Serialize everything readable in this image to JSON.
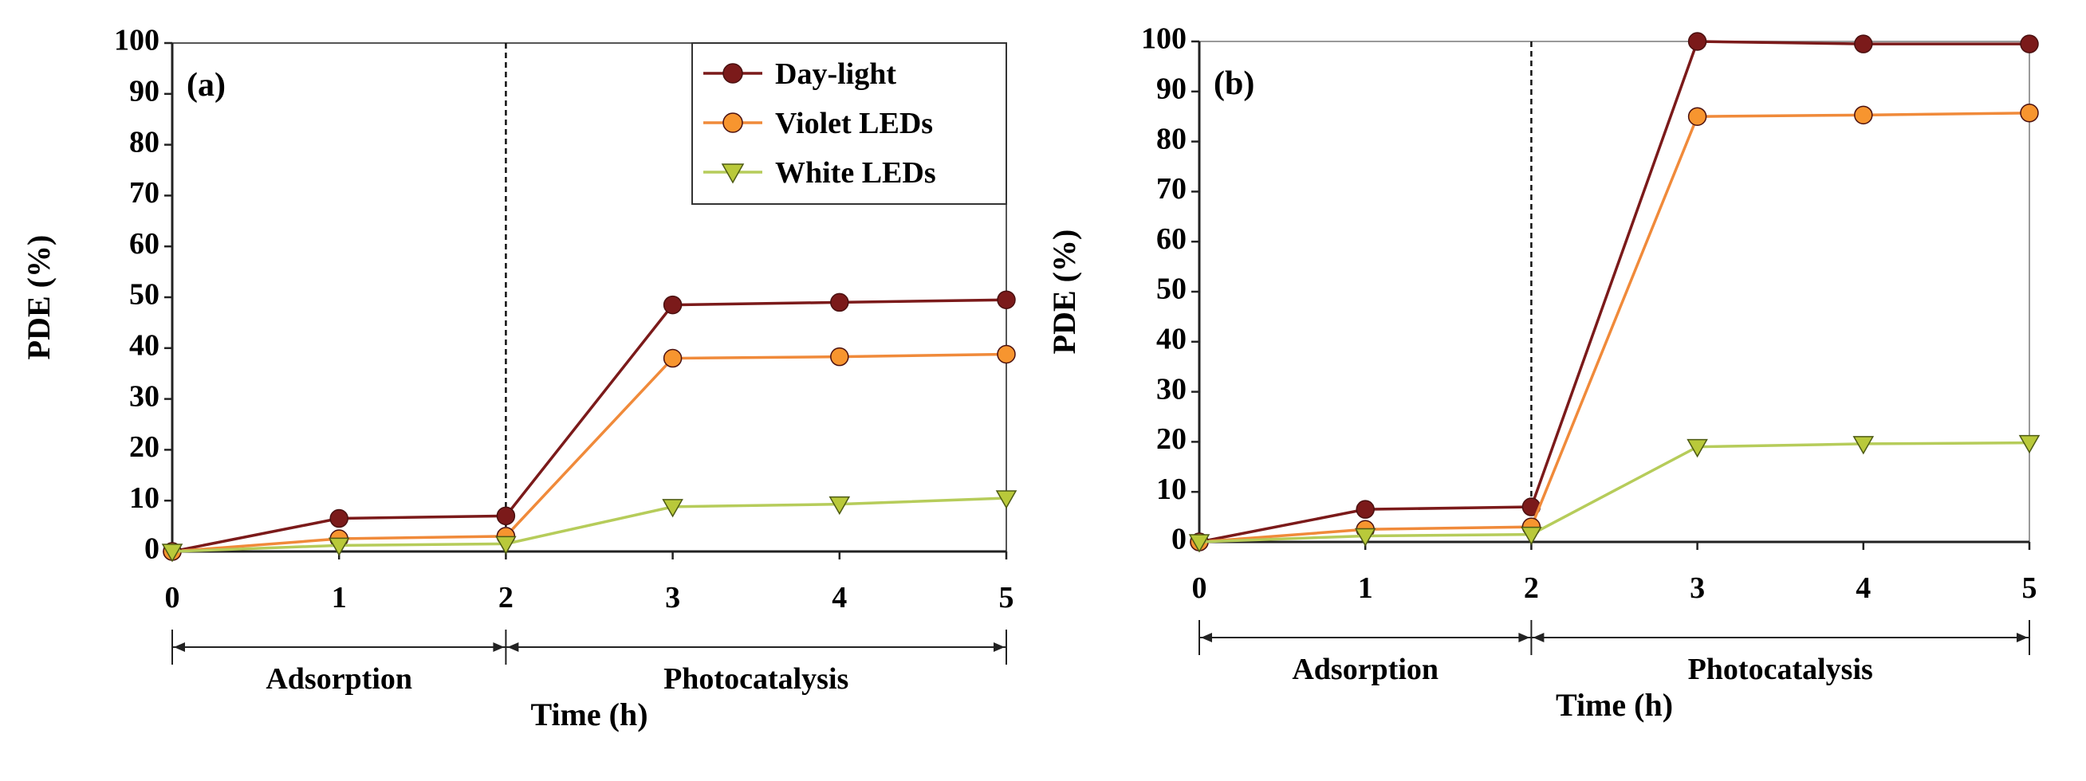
{
  "chart_data": [
    {
      "type": "line",
      "panel_label": "(a)",
      "x": [
        0,
        1,
        2,
        3,
        4,
        5
      ],
      "xlim": [
        0,
        5
      ],
      "ylim": [
        0,
        100
      ],
      "x_ticks": [
        "0",
        "1",
        "2",
        "3",
        "4",
        "5"
      ],
      "y_ticks": [
        "0",
        "10",
        "20",
        "30",
        "40",
        "50",
        "60",
        "70",
        "80",
        "90",
        "100"
      ],
      "xlabel": "Time (h)",
      "ylabel": "PDE (%)",
      "divider_x": 2,
      "phases": [
        {
          "label": "Adsorption",
          "from": 0,
          "to": 2
        },
        {
          "label": "Photocatalysis",
          "from": 2,
          "to": 5
        }
      ],
      "legend": true,
      "legend_position": "top-right",
      "grid": false,
      "series": [
        {
          "name": "Day-light",
          "values": [
            0,
            6.5,
            7,
            48.5,
            49,
            49.5
          ],
          "color": "#7b1a1a",
          "fill": "#7b1a1a",
          "marker": "circle"
        },
        {
          "name": "Violet LEDs",
          "values": [
            0,
            2.5,
            3,
            38,
            38.3,
            38.8
          ],
          "color": "#f08a3a",
          "fill": "#f7952f",
          "marker": "circle"
        },
        {
          "name": "White LEDs",
          "values": [
            0,
            1.2,
            1.5,
            8.8,
            9.3,
            10.5
          ],
          "color": "#b6cc5a",
          "fill": "#b9c93a",
          "marker": "triangle-down"
        }
      ]
    },
    {
      "type": "line",
      "panel_label": "(b)",
      "x": [
        0,
        1,
        2,
        3,
        4,
        5
      ],
      "xlim": [
        0,
        5
      ],
      "ylim": [
        0,
        100
      ],
      "x_ticks": [
        "0",
        "1",
        "2",
        "3",
        "4",
        "5"
      ],
      "y_ticks": [
        "0",
        "10",
        "20",
        "30",
        "40",
        "50",
        "60",
        "70",
        "80",
        "90",
        "100"
      ],
      "xlabel": "Time (h)",
      "ylabel": "PDE (%)",
      "divider_x": 2,
      "phases": [
        {
          "label": "Adsorption",
          "from": 0,
          "to": 2
        },
        {
          "label": "Photocatalysis",
          "from": 2,
          "to": 5
        }
      ],
      "legend": false,
      "grid": false,
      "series": [
        {
          "name": "Day-light",
          "values": [
            0,
            6.5,
            7,
            100,
            99.5,
            99.5
          ],
          "color": "#7b1a1a",
          "fill": "#7b1a1a",
          "marker": "circle"
        },
        {
          "name": "Violet LEDs",
          "values": [
            0,
            2.5,
            3,
            85,
            85.3,
            85.7
          ],
          "color": "#f08a3a",
          "fill": "#f7952f",
          "marker": "circle"
        },
        {
          "name": "White LEDs",
          "values": [
            0,
            1.2,
            1.5,
            19,
            19.6,
            19.8
          ],
          "color": "#b6cc5a",
          "fill": "#b9c93a",
          "marker": "triangle-down"
        }
      ]
    }
  ]
}
